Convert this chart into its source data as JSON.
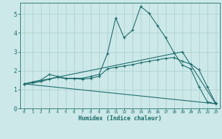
{
  "xlabel": "Humidex (Indice chaleur)",
  "bg_color": "#cce8e8",
  "grid_color": "#aacccc",
  "line_color": "#1a6b6b",
  "xlim": [
    -0.5,
    23.5
  ],
  "ylim": [
    0,
    5.6
  ],
  "xticks": [
    0,
    1,
    2,
    3,
    4,
    5,
    6,
    7,
    8,
    9,
    10,
    11,
    12,
    13,
    14,
    15,
    16,
    17,
    18,
    19,
    20,
    21,
    22,
    23
  ],
  "yticks": [
    0,
    1,
    2,
    3,
    4,
    5
  ],
  "line1_x": [
    0,
    1,
    2,
    3,
    4,
    5,
    6,
    7,
    8,
    9,
    10,
    11,
    12,
    13,
    14,
    15,
    16,
    17,
    18,
    19,
    20,
    21,
    22,
    23
  ],
  "line1_y": [
    1.3,
    1.4,
    1.5,
    1.8,
    1.7,
    1.6,
    1.6,
    1.6,
    1.7,
    1.8,
    2.9,
    4.8,
    3.75,
    4.15,
    5.4,
    5.05,
    4.4,
    3.75,
    2.95,
    2.3,
    2.1,
    1.15,
    0.35,
    0.25
  ],
  "line2_x": [
    0,
    1,
    2,
    3,
    4,
    5,
    6,
    7,
    8,
    9,
    10,
    11,
    12,
    13,
    14,
    15,
    16,
    17,
    18,
    19,
    20,
    21,
    22,
    23
  ],
  "line2_y": [
    1.3,
    1.35,
    1.42,
    1.55,
    1.65,
    1.58,
    1.58,
    1.55,
    1.6,
    1.7,
    2.1,
    2.18,
    2.25,
    2.32,
    2.42,
    2.5,
    2.58,
    2.65,
    2.7,
    2.5,
    2.35,
    2.05,
    1.15,
    0.28
  ],
  "line3_x": [
    0,
    23
  ],
  "line3_y": [
    1.3,
    0.25
  ],
  "line4_x": [
    0,
    19,
    23
  ],
  "line4_y": [
    1.3,
    3.0,
    0.25
  ]
}
